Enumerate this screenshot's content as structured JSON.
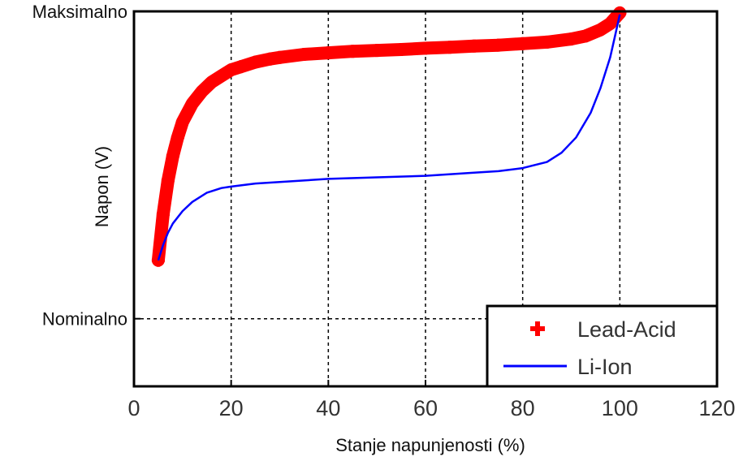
{
  "chart_data": {
    "type": "line",
    "xlabel": "Stanje napunjenosti (%)",
    "ylabel": "Napon (V)",
    "xlim": [
      0,
      120
    ],
    "x_ticks": [
      0,
      20,
      40,
      60,
      80,
      100,
      120
    ],
    "ylim": [
      -0.22,
      1.0
    ],
    "y_ticks": [
      {
        "value": 1.0,
        "label": "Maksimalno"
      },
      {
        "value": 0.0,
        "label": "Nominalno"
      }
    ],
    "grid": true,
    "legend_position": "bottom-right",
    "series": [
      {
        "name": "Lead-Acid",
        "color": "#ff0000",
        "marker": "+",
        "x": [
          5,
          6,
          7,
          8,
          9,
          10,
          12,
          14,
          16,
          18,
          20,
          22,
          25,
          28,
          30,
          35,
          40,
          45,
          50,
          55,
          60,
          65,
          70,
          75,
          80,
          85,
          90,
          93,
          96,
          98,
          100
        ],
        "y": [
          0.19,
          0.34,
          0.45,
          0.53,
          0.59,
          0.64,
          0.7,
          0.74,
          0.77,
          0.79,
          0.81,
          0.82,
          0.835,
          0.845,
          0.85,
          0.86,
          0.865,
          0.87,
          0.873,
          0.876,
          0.88,
          0.883,
          0.887,
          0.89,
          0.895,
          0.9,
          0.91,
          0.92,
          0.94,
          0.96,
          0.995
        ]
      },
      {
        "name": "Li-Ion",
        "color": "#0000ff",
        "marker": "none",
        "x": [
          5,
          6,
          7,
          8,
          10,
          12,
          15,
          18,
          20,
          25,
          30,
          40,
          50,
          60,
          70,
          75,
          80,
          85,
          88,
          91,
          94,
          96,
          98,
          99,
          100
        ],
        "y": [
          0.19,
          0.24,
          0.28,
          0.31,
          0.35,
          0.38,
          0.41,
          0.425,
          0.43,
          0.44,
          0.445,
          0.455,
          0.46,
          0.465,
          0.475,
          0.48,
          0.49,
          0.51,
          0.54,
          0.59,
          0.67,
          0.75,
          0.85,
          0.92,
          0.99
        ]
      }
    ]
  }
}
